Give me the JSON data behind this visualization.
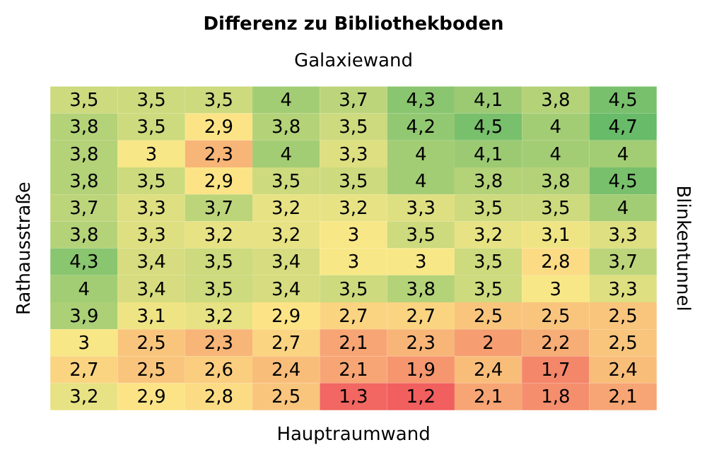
{
  "chart_data": {
    "type": "heatmap",
    "title": "Differenz zu Bibliothekboden",
    "xlabel": "Hauptraumwand",
    "x2label": "Galaxiewand",
    "ylabel": "Rathausstraße",
    "y2label": "Blinkentunnel",
    "categories": [
      null,
      null,
      null,
      null,
      null,
      null,
      null,
      null,
      null
    ],
    "y_categories": [
      null,
      null,
      null,
      null,
      null,
      null,
      null,
      null,
      null,
      null,
      null,
      null
    ],
    "cells": [
      [
        3.5,
        3.5,
        3.5,
        4,
        3.7,
        4.3,
        4.1,
        3.8,
        4.5
      ],
      [
        3.8,
        3.5,
        2.9,
        3.8,
        3.5,
        4.2,
        4.5,
        4,
        4.7
      ],
      [
        3.8,
        3,
        2.3,
        4,
        3.3,
        4,
        4.1,
        4,
        4
      ],
      [
        3.8,
        3.5,
        2.9,
        3.5,
        3.5,
        4,
        3.8,
        3.8,
        4.5
      ],
      [
        3.7,
        3.3,
        3.7,
        3.2,
        3.2,
        3.3,
        3.5,
        3.5,
        4
      ],
      [
        3.8,
        3.3,
        3.2,
        3.2,
        3,
        3.5,
        3.2,
        3.1,
        3.3
      ],
      [
        4.3,
        3.4,
        3.5,
        3.4,
        3,
        3,
        3.5,
        2.8,
        3.7
      ],
      [
        4,
        3.4,
        3.5,
        3.4,
        3.5,
        3.8,
        3.5,
        3,
        3.3
      ],
      [
        3.9,
        3.1,
        3.2,
        2.9,
        2.7,
        2.7,
        2.5,
        2.5,
        2.5
      ],
      [
        3,
        2.5,
        2.3,
        2.7,
        2.1,
        2.3,
        2,
        2.2,
        2.5
      ],
      [
        2.7,
        2.5,
        2.6,
        2.4,
        2.1,
        1.9,
        2.4,
        1.7,
        2.4
      ],
      [
        3.2,
        2.9,
        2.8,
        2.5,
        1.3,
        1.2,
        2.1,
        1.8,
        2.1
      ]
    ],
    "cell_labels": [
      [
        "3,5",
        "3,5",
        "3,5",
        "4",
        "3,7",
        "4,3",
        "4,1",
        "3,8",
        "4,5"
      ],
      [
        "3,8",
        "3,5",
        "2,9",
        "3,8",
        "3,5",
        "4,2",
        "4,5",
        "4",
        "4,7"
      ],
      [
        "3,8",
        "3",
        "2,3",
        "4",
        "3,3",
        "4",
        "4,1",
        "4",
        "4"
      ],
      [
        "3,8",
        "3,5",
        "2,9",
        "3,5",
        "3,5",
        "4",
        "3,8",
        "3,8",
        "4,5"
      ],
      [
        "3,7",
        "3,3",
        "3,7",
        "3,2",
        "3,2",
        "3,3",
        "3,5",
        "3,5",
        "4"
      ],
      [
        "3,8",
        "3,3",
        "3,2",
        "3,2",
        "3",
        "3,5",
        "3,2",
        "3,1",
        "3,3"
      ],
      [
        "4,3",
        "3,4",
        "3,5",
        "3,4",
        "3",
        "3",
        "3,5",
        "2,8",
        "3,7"
      ],
      [
        "4",
        "3,4",
        "3,5",
        "3,4",
        "3,5",
        "3,8",
        "3,5",
        "3",
        "3,3"
      ],
      [
        "3,9",
        "3,1",
        "3,2",
        "2,9",
        "2,7",
        "2,7",
        "2,5",
        "2,5",
        "2,5"
      ],
      [
        "3",
        "2,5",
        "2,3",
        "2,7",
        "2,1",
        "2,3",
        "2",
        "2,2",
        "2,5"
      ],
      [
        "2,7",
        "2,5",
        "2,6",
        "2,4",
        "2,1",
        "1,9",
        "2,4",
        "1,7",
        "2,4"
      ],
      [
        "3,2",
        "2,9",
        "2,8",
        "2,5",
        "1,3",
        "1,2",
        "2,1",
        "1,8",
        "2,1"
      ]
    ]
  }
}
